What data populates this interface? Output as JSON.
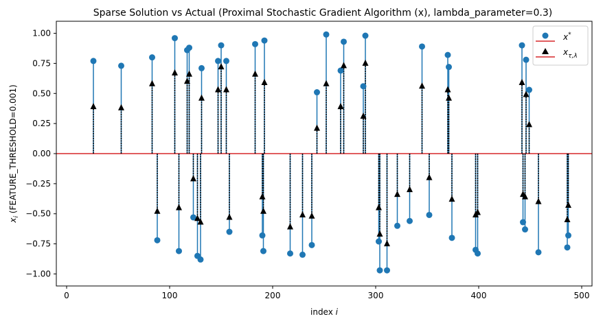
{
  "chart_data": {
    "type": "stem",
    "title": "Sparse Solution vs Actual (Proximal Stochastic Gradient Algorithm (x), lambda_parameter=0.3)",
    "xlabel": "index i",
    "ylabel": "x_i (FEATURE_THRESHOLD=0.001)",
    "xlim": [
      -10,
      510
    ],
    "ylim": [
      -1.1,
      1.1
    ],
    "xticks": [
      0,
      100,
      200,
      300,
      400,
      500
    ],
    "yticks": [
      -1.0,
      -0.75,
      -0.5,
      -0.25,
      0.0,
      0.25,
      0.5,
      0.75,
      1.0
    ],
    "xtick_labels": [
      "0",
      "100",
      "200",
      "300",
      "400",
      "500"
    ],
    "ytick_labels": [
      "−1.00",
      "−0.75",
      "−0.50",
      "−0.25",
      "0.00",
      "0.25",
      "0.50",
      "0.75",
      "1.00"
    ],
    "legend": {
      "position": "top-right",
      "entries": [
        "x*",
        "x_τ,λ"
      ]
    },
    "colors": {
      "actual": "#1f77b4",
      "estimate": "#000000",
      "baseline": "#d62728"
    },
    "series": [
      {
        "name": "x*",
        "marker": "circle",
        "x": [
          26,
          53,
          83,
          88,
          105,
          109,
          117,
          119,
          123,
          127,
          130,
          131,
          147,
          150,
          155,
          158,
          183,
          190,
          191,
          192,
          217,
          229,
          238,
          243,
          252,
          266,
          269,
          288,
          290,
          303,
          304,
          311,
          321,
          333,
          345,
          352,
          370,
          371,
          374,
          397,
          399,
          442,
          443,
          445,
          446,
          449,
          458,
          486,
          487
        ],
        "values": [
          0.77,
          0.73,
          0.8,
          -0.72,
          0.96,
          -0.81,
          0.86,
          0.88,
          -0.53,
          -0.85,
          -0.88,
          0.71,
          0.77,
          0.9,
          0.77,
          -0.65,
          0.91,
          -0.68,
          -0.81,
          0.94,
          -0.83,
          -0.84,
          -0.76,
          0.51,
          0.99,
          0.69,
          0.93,
          0.56,
          0.98,
          -0.73,
          -0.97,
          -0.97,
          -0.6,
          -0.56,
          0.89,
          -0.51,
          0.82,
          0.72,
          -0.7,
          -0.8,
          -0.83,
          0.9,
          -0.57,
          -0.63,
          0.78,
          0.53,
          -0.82,
          -0.78,
          -0.68
        ]
      },
      {
        "name": "x_τ,λ",
        "marker": "triangle",
        "x": [
          26,
          53,
          83,
          88,
          105,
          109,
          117,
          119,
          123,
          127,
          130,
          131,
          147,
          150,
          155,
          158,
          183,
          190,
          191,
          192,
          217,
          229,
          238,
          243,
          252,
          266,
          269,
          288,
          290,
          303,
          304,
          311,
          321,
          333,
          345,
          352,
          370,
          371,
          374,
          397,
          399,
          442,
          443,
          445,
          446,
          449,
          458,
          486,
          487
        ],
        "values": [
          0.39,
          0.38,
          0.58,
          -0.48,
          0.67,
          -0.45,
          0.6,
          0.66,
          -0.21,
          -0.54,
          -0.57,
          0.46,
          0.53,
          0.72,
          0.53,
          -0.53,
          0.66,
          -0.36,
          -0.48,
          0.59,
          -0.61,
          -0.51,
          -0.52,
          0.21,
          0.58,
          0.39,
          0.73,
          0.31,
          0.75,
          -0.45,
          -0.67,
          -0.75,
          -0.34,
          -0.3,
          0.56,
          -0.2,
          0.53,
          0.46,
          -0.38,
          -0.51,
          -0.49,
          0.59,
          -0.34,
          -0.36,
          0.49,
          0.24,
          -0.4,
          -0.55,
          -0.43
        ]
      }
    ]
  }
}
